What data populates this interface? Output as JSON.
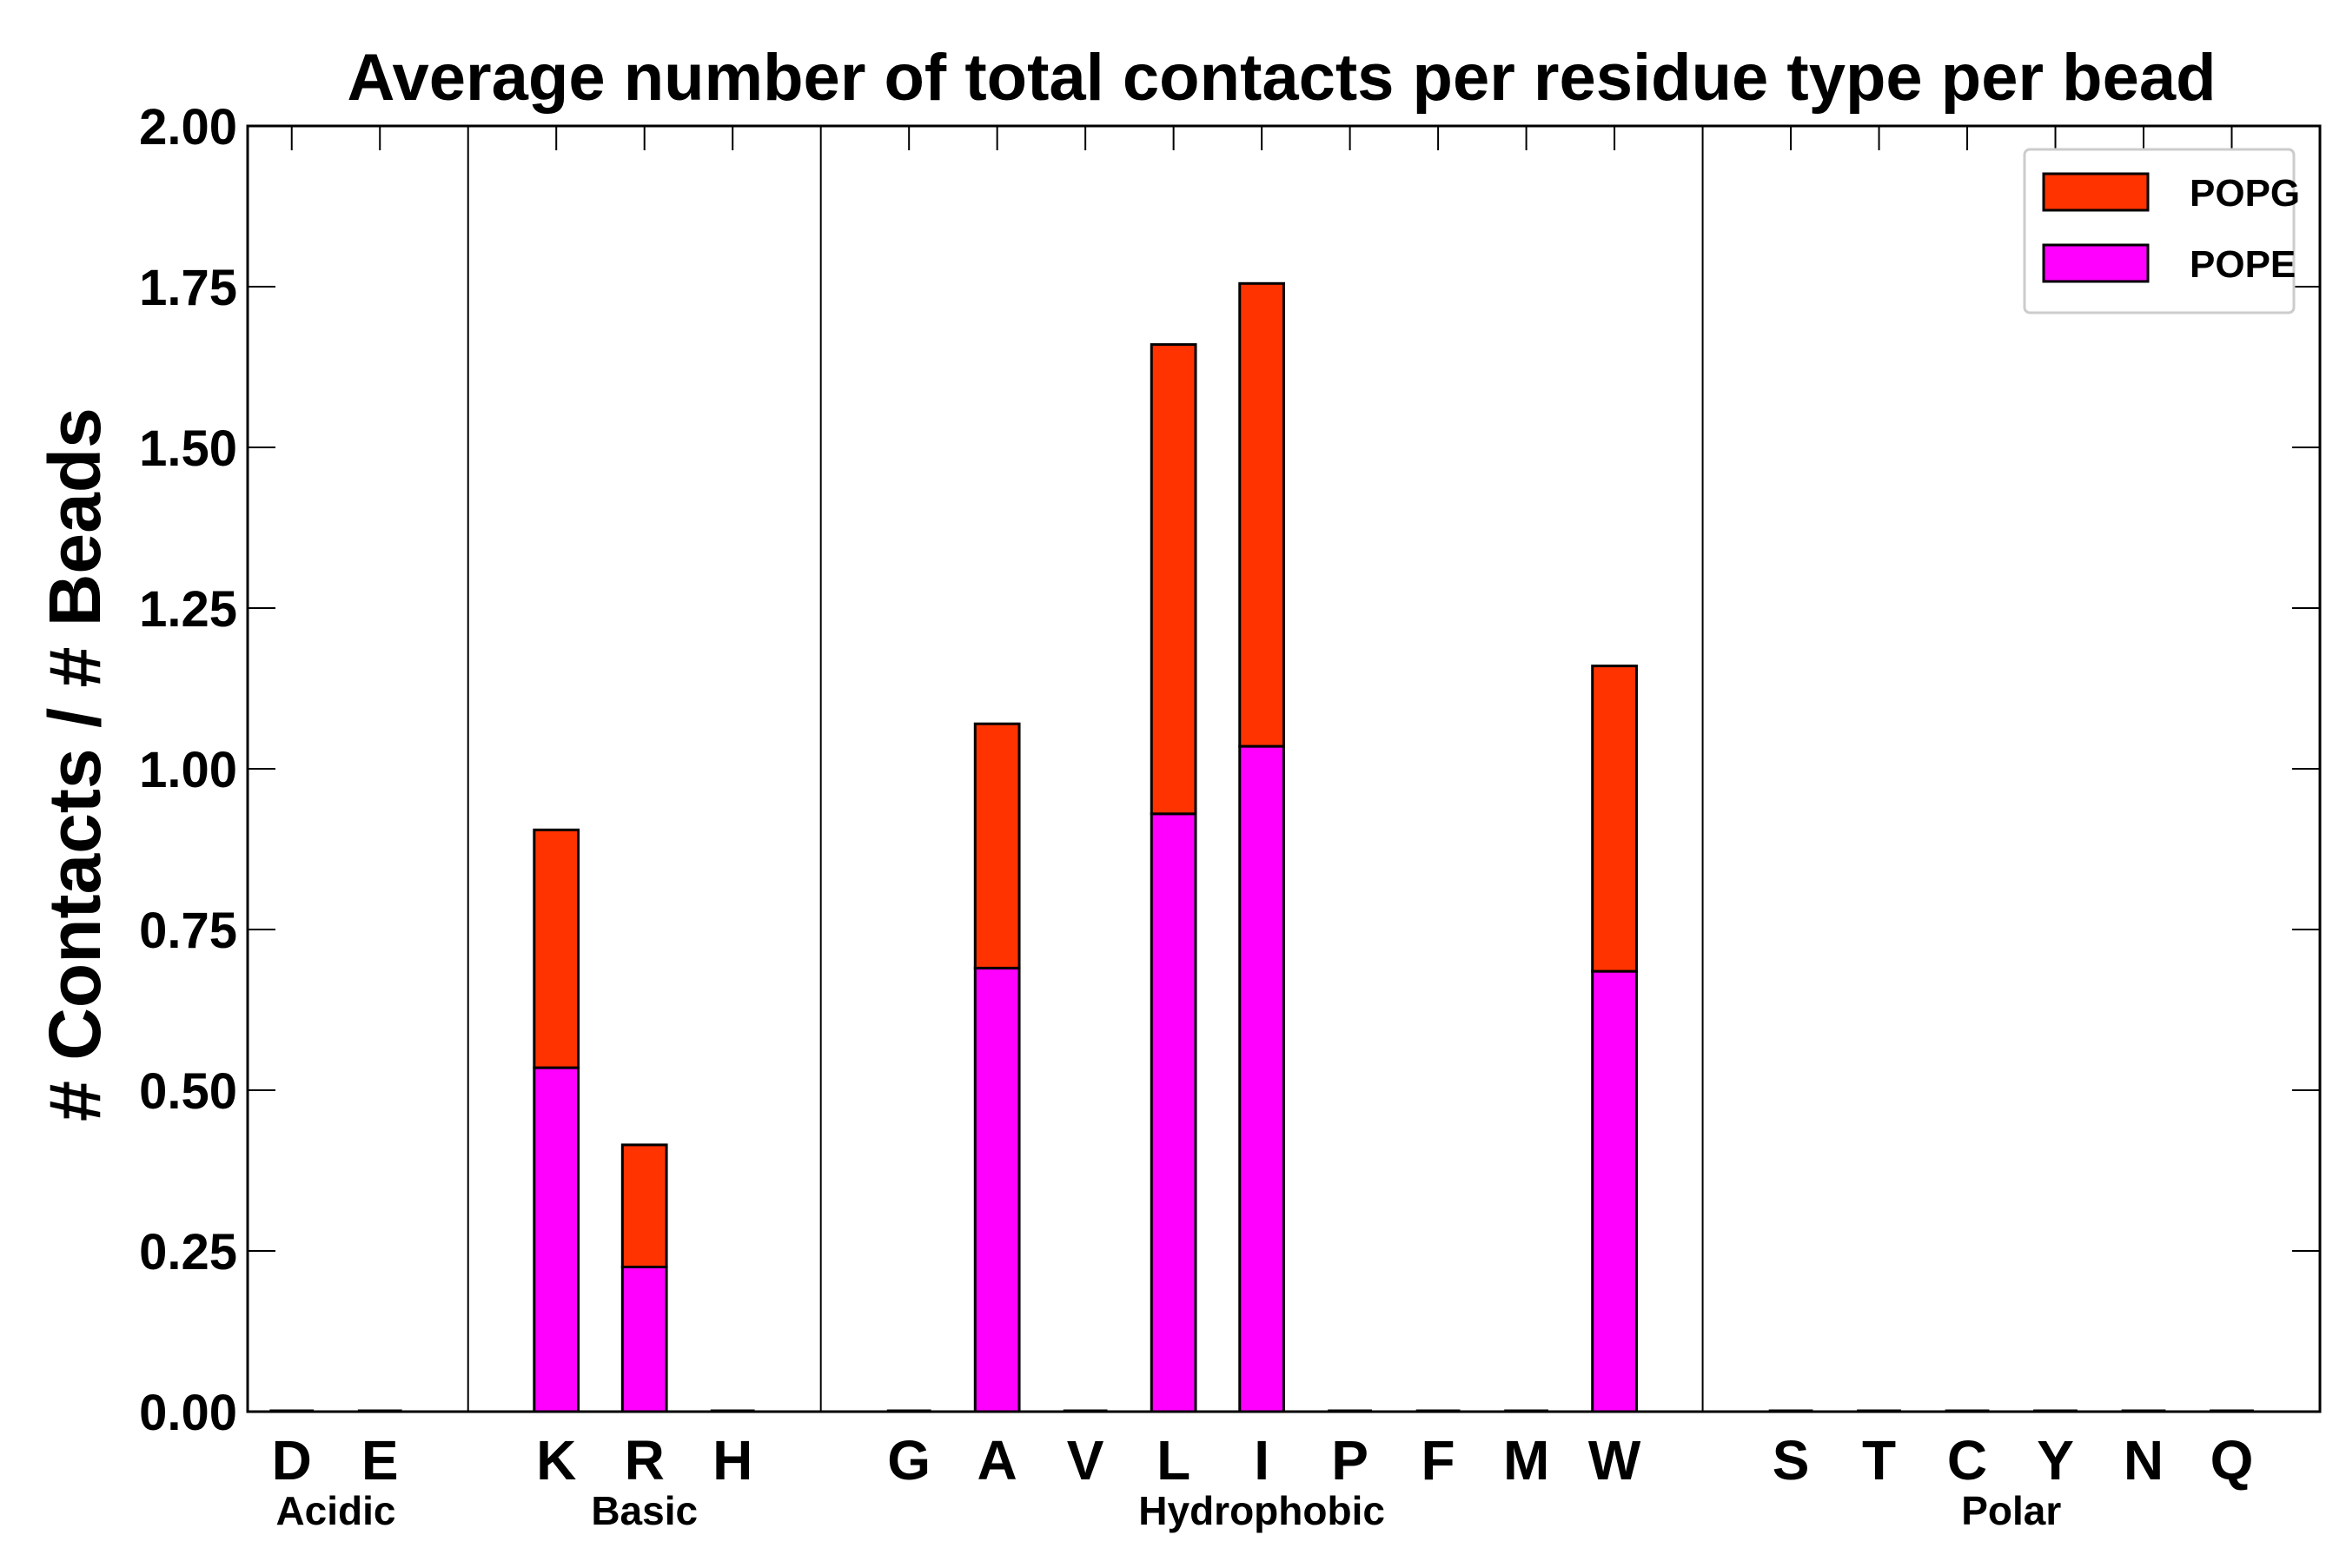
{
  "chart_data": {
    "type": "bar",
    "stacked": true,
    "title": "Average number of total contacts per residue type per bead",
    "xlabel": "",
    "ylabel": "# Contacts / # Beads",
    "ylim": [
      0,
      2.0
    ],
    "yticks": [
      "0.00",
      "0.25",
      "0.50",
      "0.75",
      "1.00",
      "1.25",
      "1.50",
      "1.75",
      "2.00"
    ],
    "ytick_values": [
      0,
      0.25,
      0.5,
      0.75,
      1.0,
      1.25,
      1.5,
      1.75,
      2.0
    ],
    "categories": [
      "D",
      "E",
      "K",
      "R",
      "H",
      "G",
      "A",
      "V",
      "L",
      "I",
      "P",
      "F",
      "M",
      "W",
      "S",
      "T",
      "C",
      "Y",
      "N",
      "Q"
    ],
    "groups": [
      {
        "label": "Acidic",
        "members": [
          "D",
          "E"
        ]
      },
      {
        "label": "Basic",
        "members": [
          "K",
          "R",
          "H"
        ]
      },
      {
        "label": "Hydrophobic",
        "members": [
          "G",
          "A",
          "V",
          "L",
          "I",
          "P",
          "F",
          "M",
          "W"
        ]
      },
      {
        "label": "Polar",
        "members": [
          "S",
          "T",
          "C",
          "Y",
          "N",
          "Q"
        ]
      }
    ],
    "series": [
      {
        "name": "POPE",
        "color": "#ff00ff",
        "values": [
          0,
          0,
          0.535,
          0.225,
          0,
          0,
          0.69,
          0,
          0.93,
          1.035,
          0,
          0,
          0,
          0.685,
          0,
          0,
          0,
          0,
          0,
          0
        ]
      },
      {
        "name": "POPG",
        "color": "#ff3300",
        "values": [
          0,
          0,
          0.37,
          0.19,
          0,
          0,
          0.38,
          0,
          0.73,
          0.72,
          0,
          0,
          0,
          0.475,
          0,
          0,
          0,
          0,
          0,
          0
        ]
      }
    ],
    "legend": {
      "position": "top-right",
      "entries": [
        "POPG",
        "POPE"
      ]
    }
  }
}
